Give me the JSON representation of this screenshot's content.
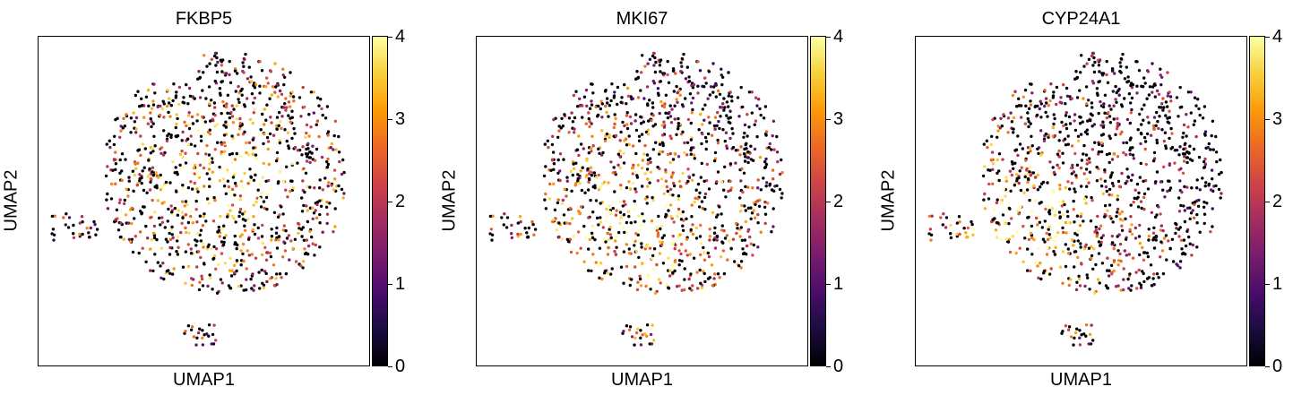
{
  "colormap": [
    "#000004",
    "#1b0c41",
    "#4a0c6b",
    "#781c6d",
    "#a52c60",
    "#cf4446",
    "#ed6925",
    "#fb9b06",
    "#f7d13d",
    "#fcffa4"
  ],
  "chart_data": [
    {
      "type": "scatter",
      "title": "FKBP5",
      "xlabel": "UMAP1",
      "ylabel": "UMAP2",
      "colorbar_ticks": [
        "0",
        "1",
        "2",
        "3",
        "4"
      ],
      "colorbar_range": [
        0,
        4
      ],
      "expression_hotspot": [
        0.55,
        0.45
      ]
    },
    {
      "type": "scatter",
      "title": "MKI67",
      "xlabel": "UMAP1",
      "ylabel": "UMAP2",
      "colorbar_ticks": [
        "0",
        "1",
        "2",
        "3",
        "4"
      ],
      "colorbar_range": [
        0,
        4
      ],
      "expression_hotspot": [
        0.5,
        0.6
      ]
    },
    {
      "type": "scatter",
      "title": "CYP24A1",
      "xlabel": "UMAP1",
      "ylabel": "UMAP2",
      "colorbar_ticks": [
        "0",
        "1",
        "2",
        "3",
        "4"
      ],
      "colorbar_range": [
        0,
        4
      ],
      "expression_hotspot": [
        0.3,
        0.6
      ]
    }
  ]
}
